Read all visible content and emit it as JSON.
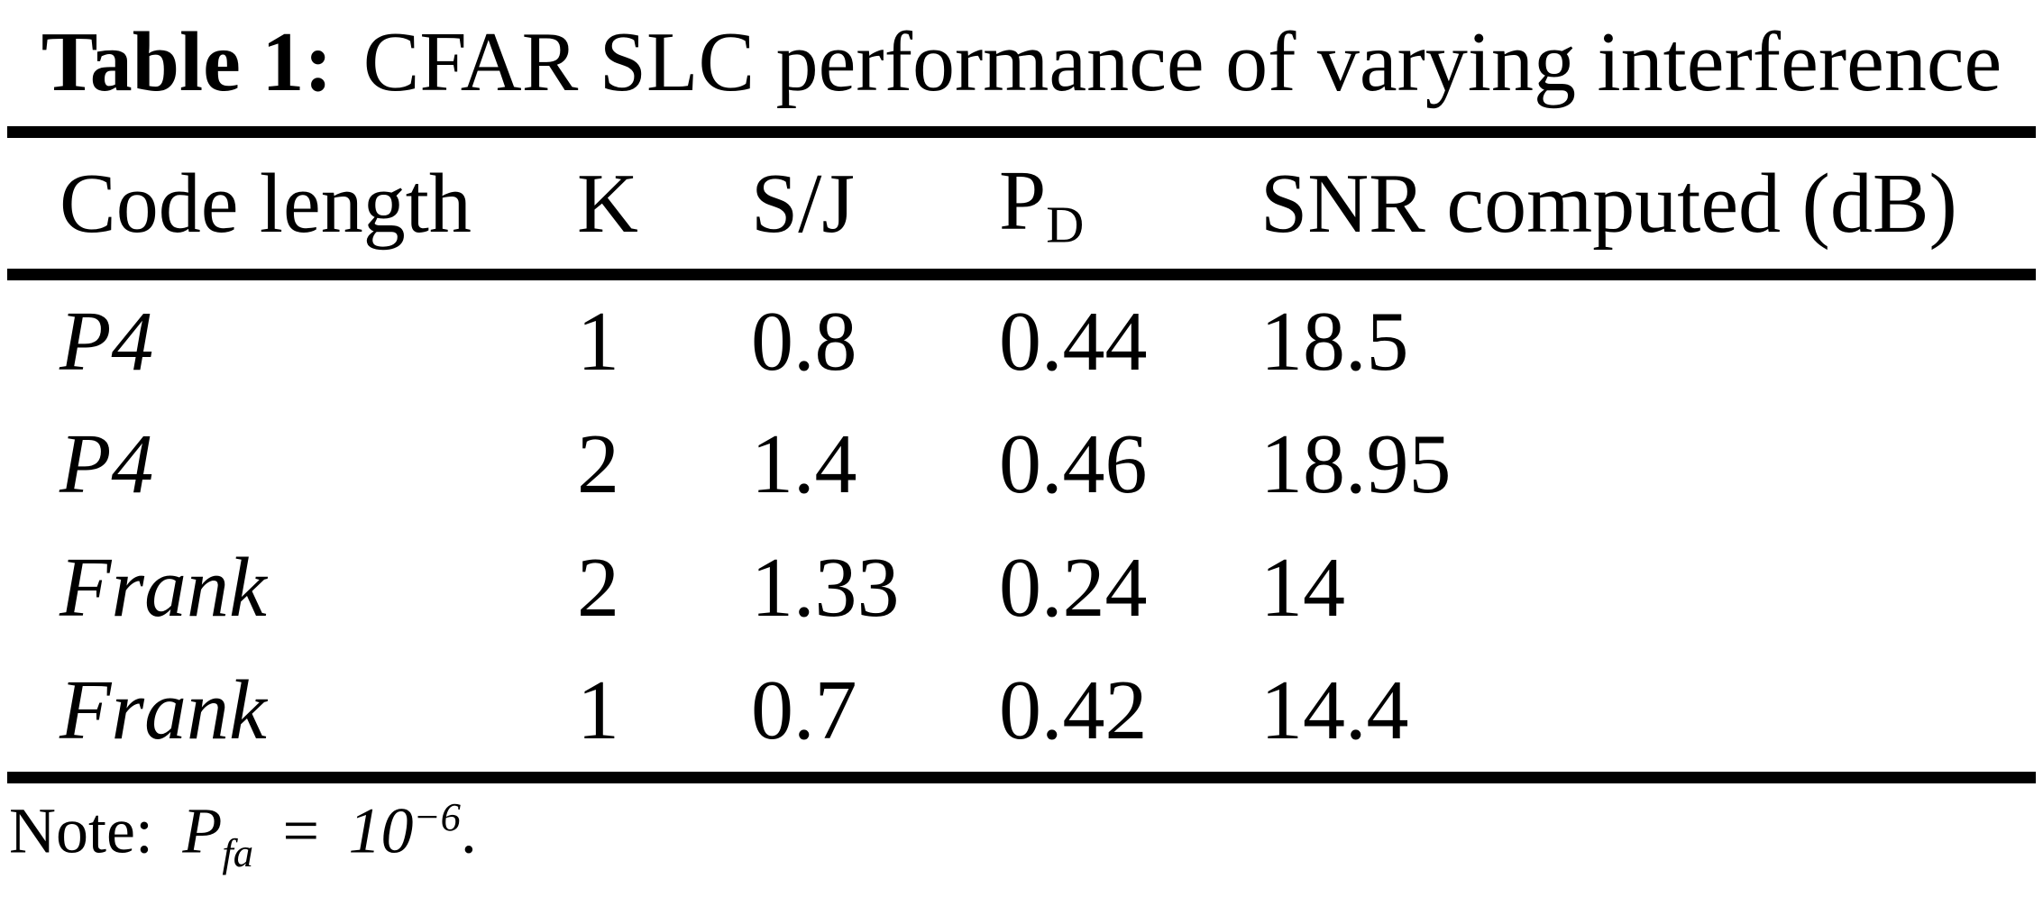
{
  "caption": {
    "label": "Table 1:",
    "text": "CFAR SLC performance of varying interference"
  },
  "header": {
    "code_length": "Code length",
    "k": "K",
    "sj": "S/J",
    "pd_base": "P",
    "pd_sub": "D",
    "snr": "SNR computed (dB)"
  },
  "rows": [
    {
      "code": "P4",
      "k": "1",
      "sj": "0.8",
      "pd": "0.44",
      "snr": "18.5"
    },
    {
      "code": "P4",
      "k": "2",
      "sj": "1.4",
      "pd": "0.46",
      "snr": "18.95"
    },
    {
      "code": "Frank",
      "k": "2",
      "sj": "1.33",
      "pd": "0.24",
      "snr": "14"
    },
    {
      "code": "Frank",
      "k": "1",
      "sj": "0.7",
      "pd": "0.42",
      "snr": "14.4"
    }
  ],
  "note": {
    "prefix": "Note:",
    "var_base": "P",
    "var_sub": "fa",
    "equals": "=",
    "value_base": "10",
    "value_sup": "−6",
    "period": "."
  },
  "colors": {
    "background": "#ffffff",
    "text": "#000000",
    "rule": "#000000"
  }
}
